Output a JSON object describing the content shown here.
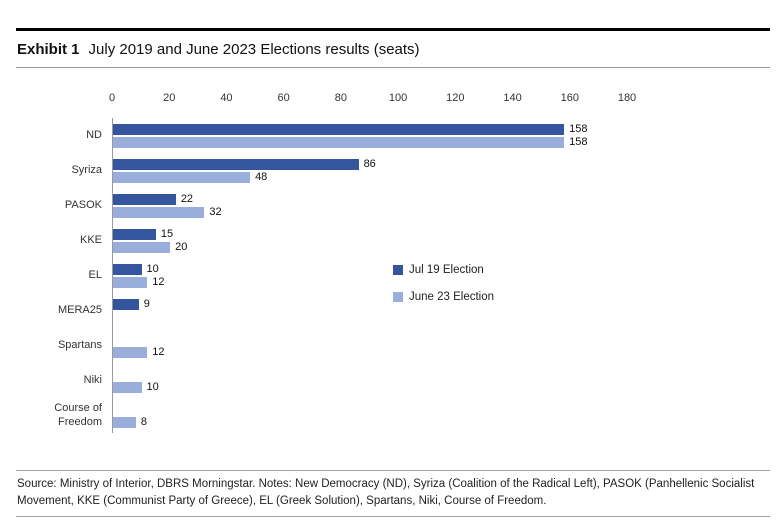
{
  "header": {
    "exhibit_label": "Exhibit 1",
    "title": "July 2019 and June 2023 Elections results (seats)"
  },
  "chart_data": {
    "type": "bar",
    "orientation": "horizontal",
    "title": "July 2019 and June 2023 Elections results (seats)",
    "xlabel": "",
    "ylabel": "",
    "xlim": [
      0,
      180
    ],
    "xmax": 180,
    "axis_ticks": [
      0,
      20,
      40,
      60,
      80,
      100,
      120,
      140,
      160,
      180
    ],
    "grid": false,
    "legend_position": "middle-right",
    "categories": [
      "ND",
      "Syriza",
      "PASOK",
      "KKE",
      "EL",
      "MERA25",
      "Spartans",
      "Niki",
      "Course of Freedom"
    ],
    "series": [
      {
        "name": "Jul 19 Election",
        "color": "#35559F",
        "values": [
          158,
          86,
          22,
          15,
          10,
          9,
          null,
          null,
          null
        ]
      },
      {
        "name": "June 23 Election",
        "color": "#9AAEDC",
        "values": [
          158,
          48,
          32,
          20,
          12,
          null,
          12,
          10,
          8
        ]
      }
    ]
  },
  "footer": {
    "source_note": "Source: Ministry of Interior, DBRS Morningstar. Notes: New Democracy (ND), Syriza (Coalition of the Radical Left), PASOK (Panhellenic Socialist Movement, KKE (Communist Party of Greece), EL (Greek Solution), Spartans, Niki, Course of Freedom."
  }
}
